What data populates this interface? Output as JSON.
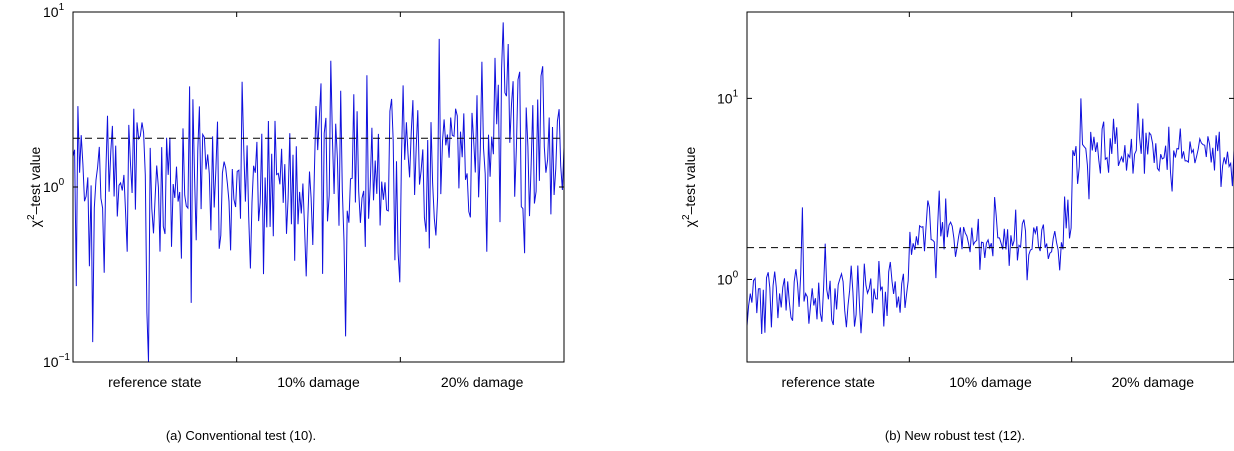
{
  "colors": {
    "series": "#1010dd",
    "threshold": "#000000",
    "frame": "#000000"
  },
  "chart_data": [
    {
      "type": "line",
      "caption": "(a)  Conventional test (10).",
      "ylabel": "χ2–test value",
      "yscale": "log",
      "ylim": [
        0.1,
        10
      ],
      "y_ticks": [
        {
          "mantissa": "10",
          "exponent": "−1"
        },
        {
          "mantissa": "10",
          "exponent": "0"
        },
        {
          "mantissa": "10",
          "exponent": "1"
        }
      ],
      "categories": [
        "reference state",
        "10% damage",
        "20% damage"
      ],
      "threshold": 1.9,
      "series": [
        {
          "seed": 7,
          "n_points": 300,
          "segments": [
            {
              "mean": 1.05,
              "spread": 0.95
            },
            {
              "mean": 1.1,
              "spread": 0.95
            },
            {
              "mean": 1.75,
              "spread": 0.95
            }
          ],
          "spikes": [
            {
              "index": 46,
              "value": 0.1
            },
            {
              "index": 12,
              "value": 0.13
            },
            {
              "index": 3,
              "value": 2.9
            },
            {
              "index": 249,
              "value": 5.2
            },
            {
              "index": 166,
              "value": 0.14
            },
            {
              "index": 286,
              "value": 4.9
            },
            {
              "index": 160,
              "value": 2.3
            }
          ]
        }
      ]
    },
    {
      "type": "line",
      "caption": "(b)  New robust test (12).",
      "ylabel": "χ2–test value",
      "yscale": "log",
      "ylim": [
        0.35,
        30
      ],
      "y_ticks": [
        {
          "mantissa": "10",
          "exponent": "0"
        },
        {
          "mantissa": "10",
          "exponent": "1"
        }
      ],
      "categories": [
        "reference state",
        "10% damage",
        "20% damage"
      ],
      "threshold": 1.5,
      "series": [
        {
          "seed": 21,
          "n_points": 300,
          "segments": [
            {
              "mean": 0.85,
              "spread": 0.35
            },
            {
              "mean": 1.7,
              "spread": 0.3
            },
            {
              "mean": 4.9,
              "spread": 0.3
            }
          ],
          "spikes": [
            {
              "index": 34,
              "value": 2.5
            },
            {
              "index": 9,
              "value": 0.5
            },
            {
              "index": 84,
              "value": 0.55
            },
            {
              "index": 205,
              "value": 10.0
            },
            {
              "index": 240,
              "value": 9.4
            },
            {
              "index": 122,
              "value": 2.8
            }
          ]
        }
      ]
    }
  ]
}
